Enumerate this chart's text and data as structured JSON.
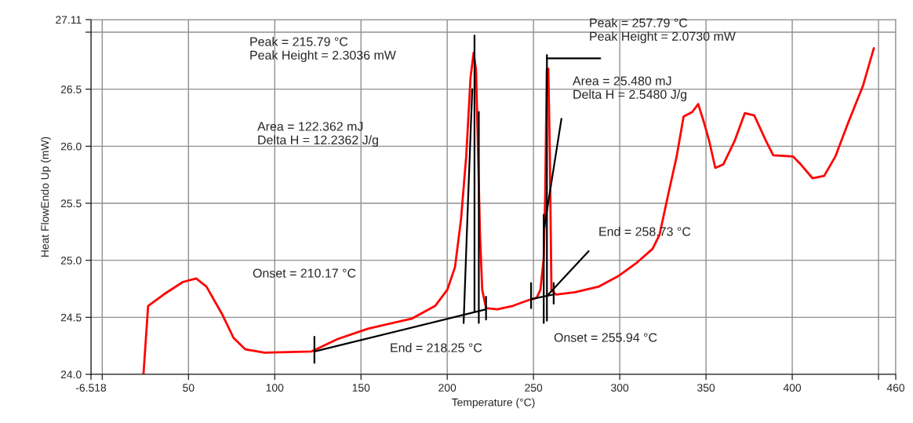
{
  "chart_data": {
    "type": "line",
    "xlabel": "Temperature (°C)",
    "ylabel": "Heat FlowEndo Up (mW)",
    "xlim": [
      -6.518,
      460
    ],
    "xticks": [
      -6.518,
      {
        "value": 0,
        "label": null
      },
      50,
      100,
      150,
      200,
      250,
      300,
      350,
      400,
      {
        "value": 450,
        "label": null
      },
      460
    ],
    "ylim": [
      24.0,
      27.11
    ],
    "yticks": [
      {
        "value": 24.0,
        "label": "24.0"
      },
      24.5,
      {
        "value": 25.0,
        "label": "25.0"
      },
      25.5,
      {
        "value": 26.0,
        "label": "26.0"
      },
      26.5,
      {
        "value": 27.0,
        "label": null
      },
      27.11
    ],
    "grid": true,
    "series": [
      {
        "color": "#ff0000",
        "x": [
          23.9,
          26.6,
          35.6,
          46.8,
          54.5,
          60.4,
          69.4,
          76.1,
          82.9,
          94.1,
          121.2,
          136.5,
          154,
          179.7,
          193,
          200,
          204.5,
          208,
          211,
          213.5,
          215.3,
          216.7,
          217.6,
          219,
          220.3,
          222.5,
          229,
          238,
          247,
          251.8,
          254,
          255.9,
          256.8,
          257.7,
          258.6,
          259.5,
          260.4,
          263,
          274,
          288,
          299,
          310,
          319,
          323,
          328,
          333,
          337,
          342,
          345.5,
          348.6,
          351.8,
          355.4,
          360,
          366.7,
          372.5,
          378,
          384.7,
          389,
          400.5,
          405,
          411.7,
          418.5,
          425,
          432,
          441,
          447.3
        ],
        "values": [
          24.0,
          24.6,
          24.7,
          24.81,
          24.84,
          24.77,
          24.53,
          24.32,
          24.22,
          24.19,
          24.2,
          24.31,
          24.4,
          24.49,
          24.6,
          24.74,
          24.94,
          25.36,
          25.91,
          26.6,
          26.82,
          26.67,
          26.12,
          25.22,
          24.74,
          24.58,
          24.57,
          24.6,
          24.65,
          24.67,
          24.74,
          25.01,
          25.57,
          26.67,
          26.68,
          25.91,
          24.74,
          24.7,
          24.72,
          24.77,
          24.86,
          24.98,
          25.1,
          25.22,
          25.57,
          25.91,
          26.26,
          26.3,
          26.37,
          26.22,
          26.05,
          25.81,
          25.84,
          26.05,
          26.29,
          26.27,
          26.05,
          25.92,
          25.91,
          25.84,
          25.72,
          25.74,
          25.91,
          26.19,
          26.53,
          26.86
        ]
      },
      {
        "color": "#000000",
        "x": [
          123,
          222.5
        ],
        "values": [
          24.2,
          24.57
        ]
      },
      {
        "color": "#000000",
        "x": [
          123,
          123
        ],
        "values": [
          24.1,
          24.33
        ]
      },
      {
        "color": "#000000",
        "x": [
          215.8,
          215.8
        ],
        "values": [
          24.55,
          26.97
        ]
      },
      {
        "color": "#000000",
        "x": [
          209.5,
          212,
          214.5
        ],
        "values": [
          24.45,
          25.5,
          26.5
        ]
      },
      {
        "color": "#000000",
        "x": [
          218.3,
          218.3
        ],
        "values": [
          24.45,
          26.3
        ]
      },
      {
        "color": "#000000",
        "x": [
          222.5,
          222.5
        ],
        "values": [
          24.48,
          24.68
        ]
      },
      {
        "color": "#000000",
        "x": [
          248.6,
          261.7
        ],
        "values": [
          24.66,
          24.7
        ]
      },
      {
        "color": "#000000",
        "x": [
          248.6,
          248.6
        ],
        "values": [
          24.58,
          24.8
        ]
      },
      {
        "color": "#000000",
        "x": [
          257.79,
          257.79
        ],
        "values": [
          24.47,
          26.8
        ]
      },
      {
        "color": "#000000",
        "x": [
          257.7,
          288.7
        ],
        "values": [
          26.77,
          26.77
        ]
      },
      {
        "color": "#000000",
        "x": [
          255.94,
          255.94
        ],
        "values": [
          24.45,
          25.4
        ]
      },
      {
        "color": "#000000",
        "x": [
          256.3,
          266.2
        ],
        "values": [
          25.29,
          26.24
        ]
      },
      {
        "color": "#000000",
        "x": [
          258.6,
          282
        ],
        "values": [
          24.7,
          25.08
        ]
      },
      {
        "color": "#000000",
        "x": [
          261.7,
          261.7
        ],
        "values": [
          24.62,
          24.8
        ]
      }
    ],
    "annotations": [
      "Peak = 215.79 °C\nPeak Height = 2.3036 mW",
      "Area = 122.362 mJ\nDelta H = 12.2362 J/g",
      "Onset = 210.17 °C",
      "End = 218.25 °C",
      "Peak = 257.79 °C\nPeak Height = 2.0730 mW",
      "Area = 25.480 mJ\nDelta H = 2.5480 J/g",
      "End = 258.73 °C",
      "Onset = 255.94 °C"
    ]
  }
}
